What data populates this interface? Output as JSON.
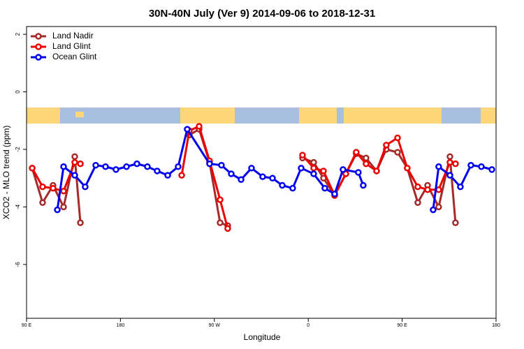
{
  "chart_data": {
    "type": "line",
    "title": "30N-40N July (Ver 9)   2014-09-06 to 2018-12-31",
    "x_label": "Longitude",
    "y_label": "XCO2 - MLO trend (ppm)",
    "xlim": [
      90,
      540
    ],
    "ylim": [
      -7.87,
      2.27
    ],
    "xticks": [
      {
        "value": 90,
        "label": "90 E"
      },
      180,
      {
        "value": 270,
        "label": "90 W"
      },
      {
        "value": 360,
        "label": "0"
      },
      {
        "value": 450,
        "label": "90 E"
      },
      {
        "value": 540,
        "label": "180"
      }
    ],
    "yticks": [
      -6,
      -4,
      -2,
      0,
      2
    ],
    "legend": "top-left",
    "series": [
      {
        "name": "Land Nadir",
        "color": "#a52a2a",
        "x": [
          95.4,
          105.4,
          115.4,
          125.5,
          136.2,
          141.6,
          200,
          246,
          255.4,
          265.4,
          275.5,
          282.8,
          320,
          354.5,
          365.2,
          374.6,
          385.3,
          396,
          406,
          415.4,
          425.5,
          434.8,
          445.6,
          454.9,
          465,
          474.4,
          485,
          495.8,
          501.1
        ],
        "values": [
          -2.65,
          -3.85,
          -3.25,
          -4.0,
          -2.25,
          -4.55,
          null,
          -1.5,
          -1.3,
          -2.45,
          -4.55,
          -4.65,
          null,
          -2.3,
          -2.45,
          -3.0,
          -3.6,
          -2.85,
          -2.15,
          -2.3,
          -2.75,
          -2.0,
          -2.1,
          -2.65,
          -3.85,
          -3.25,
          -4.0,
          -2.25,
          -4.55
        ]
      },
      {
        "name": "Land Glint",
        "color": "#ee0000",
        "x": [
          95.4,
          105.4,
          115.4,
          125.5,
          136.2,
          141.6,
          200,
          238.7,
          246,
          255.4,
          265.4,
          275.5,
          282.8,
          320,
          354.5,
          365.2,
          374.6,
          385.3,
          396,
          406,
          415.4,
          425.5,
          434.8,
          445.6,
          454.9,
          465,
          474.4,
          485,
          495.8,
          501.1
        ],
        "values": [
          -2.65,
          -3.3,
          -3.35,
          -3.45,
          -2.45,
          -2.5,
          null,
          -2.9,
          -1.35,
          -1.2,
          -2.4,
          -3.75,
          -4.75,
          null,
          -2.2,
          -2.65,
          -2.75,
          -3.6,
          -2.85,
          -2.1,
          -2.5,
          -2.75,
          -1.85,
          -1.6,
          -2.65,
          -3.3,
          -3.4,
          -3.4,
          -2.45,
          -2.5
        ]
      },
      {
        "name": "Ocean Glint",
        "color": "#0000ee",
        "x": [
          119.5,
          125.5,
          136.2,
          146.2,
          156.3,
          165.7,
          175.7,
          185.8,
          195.8,
          205.8,
          215.2,
          225.3,
          235.3,
          244,
          265.4,
          276.8,
          286.2,
          295.6,
          305.6,
          316.3,
          325.7,
          335.1,
          345.1,
          353.2,
          365.2,
          375.9,
          385.3,
          393.3,
          408,
          412.7,
          450,
          479.7,
          485,
          495.8,
          505.8,
          515.9,
          525.9,
          536
        ],
        "values": [
          -4.1,
          -2.6,
          -2.9,
          -3.3,
          -2.55,
          -2.6,
          -2.7,
          -2.6,
          -2.5,
          -2.6,
          -2.75,
          -2.9,
          -2.6,
          -1.3,
          -2.5,
          -2.55,
          -2.85,
          -3.05,
          -2.65,
          -2.95,
          -3.0,
          -3.25,
          -3.35,
          -2.65,
          -2.85,
          -3.35,
          -3.55,
          -2.7,
          -2.8,
          -3.25,
          null,
          -4.1,
          -2.6,
          -2.9,
          -3.3,
          -2.55,
          -2.6,
          -2.7
        ]
      }
    ]
  }
}
